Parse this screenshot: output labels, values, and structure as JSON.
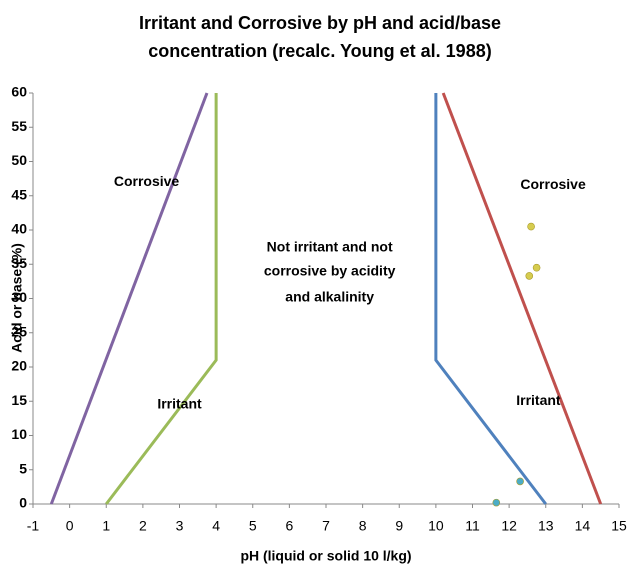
{
  "chart_data": {
    "type": "line",
    "title": [
      "Irritant and Corrosive by pH and acid/base",
      "concentration (recalc. Young et al. 1988)"
    ],
    "x_label": "pH (liquid or solid 10 l/kg)",
    "y_label": "Acid or base (%)",
    "xlim": [
      -1,
      15
    ],
    "xticks": [
      -1,
      0,
      1,
      2,
      3,
      4,
      5,
      6,
      7,
      8,
      9,
      10,
      11,
      12,
      13,
      14,
      15
    ],
    "ylim": [
      0,
      60
    ],
    "yticks": [
      0,
      5,
      10,
      15,
      20,
      25,
      30,
      35,
      40,
      45,
      50,
      55,
      60
    ],
    "grid": false,
    "series": [
      {
        "color": "#8064a2",
        "x": [
          -0.5,
          3.75
        ],
        "values": [
          0,
          60
        ]
      },
      {
        "color": "#9bbb59",
        "x": [
          1,
          4,
          4
        ],
        "values": [
          0,
          21,
          60
        ]
      },
      {
        "color": "#4f81bd",
        "x": [
          10,
          10,
          13
        ],
        "values": [
          60,
          21,
          0
        ]
      },
      {
        "color": "#c0504d",
        "x": [
          10.2,
          14.5
        ],
        "values": [
          60,
          0
        ]
      },
      {
        "type": "scatter",
        "color": "#d6cc4f",
        "x": [
          12.6,
          12.75,
          12.55
        ],
        "values": [
          40.5,
          34.5,
          33.3
        ]
      },
      {
        "type": "scatter",
        "color": "#4bacc6",
        "x": [
          12.3,
          11.65
        ],
        "values": [
          3.3,
          0.2
        ]
      }
    ],
    "annotations": [
      {
        "text": "Corrosive",
        "x": 2.1,
        "y": 47
      },
      {
        "text": "Corrosive",
        "x": 13.2,
        "y": 46.5
      },
      {
        "text": "Irritant",
        "x": 3,
        "y": 14.5
      },
      {
        "text": "Irritant",
        "x": 12.8,
        "y": 15
      },
      {
        "text": "Not irritant and not",
        "x": 7.1,
        "y": 37.4
      },
      {
        "text": "corrosive by acidity",
        "x": 7.1,
        "y": 33.9
      },
      {
        "text": "and alkalinity",
        "x": 7.1,
        "y": 30.1
      }
    ]
  }
}
